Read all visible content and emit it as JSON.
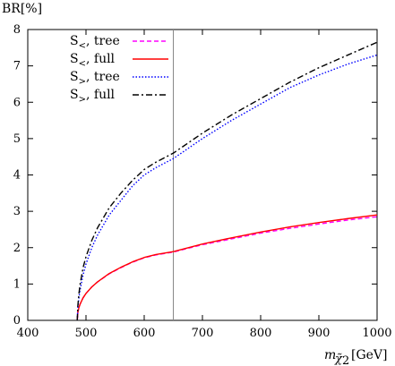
{
  "chart_data": {
    "type": "line",
    "xlabel_main": "m",
    "xlabel_subscript": "χ̃",
    "xlabel_subsubscript": "2",
    "xlabel_unit": "[GeV]",
    "ylabel": "BR[%]",
    "xlim": [
      400,
      1000
    ],
    "ylim": [
      0,
      8
    ],
    "x_ticks": [
      400,
      500,
      600,
      700,
      800,
      900,
      1000
    ],
    "y_ticks": [
      0,
      1,
      2,
      3,
      4,
      5,
      6,
      7,
      8
    ],
    "vertical_line_x": 650,
    "legend_position": "top-left",
    "series": [
      {
        "name_main": "S",
        "name_sub": "<",
        "name_rest": ", tree",
        "color": "#ff00ff",
        "style": "dashed",
        "x": [
          485,
          486,
          488,
          490,
          495,
          500,
          510,
          520,
          540,
          560,
          580,
          600,
          620,
          650,
          700,
          750,
          800,
          850,
          900,
          950,
          1000
        ],
        "y": [
          0.0,
          0.22,
          0.36,
          0.45,
          0.62,
          0.74,
          0.92,
          1.06,
          1.28,
          1.45,
          1.6,
          1.72,
          1.8,
          1.88,
          2.08,
          2.24,
          2.4,
          2.53,
          2.65,
          2.76,
          2.85
        ]
      },
      {
        "name_main": "S",
        "name_sub": "<",
        "name_rest": ", full",
        "color": "#ff0000",
        "style": "solid",
        "x": [
          485,
          486,
          488,
          490,
          495,
          500,
          510,
          520,
          540,
          560,
          580,
          600,
          620,
          650,
          700,
          750,
          800,
          850,
          900,
          950,
          1000
        ],
        "y": [
          0.0,
          0.22,
          0.36,
          0.45,
          0.62,
          0.74,
          0.92,
          1.06,
          1.29,
          1.46,
          1.61,
          1.73,
          1.81,
          1.89,
          2.1,
          2.27,
          2.43,
          2.57,
          2.69,
          2.8,
          2.9
        ]
      },
      {
        "name_main": "S",
        "name_sub": ">",
        "name_rest": ", tree",
        "color": "#0000ff",
        "style": "dotted",
        "x": [
          485,
          486,
          488,
          490,
          495,
          500,
          510,
          520,
          540,
          560,
          580,
          600,
          620,
          650,
          700,
          750,
          800,
          850,
          900,
          950,
          1000
        ],
        "y": [
          0.0,
          0.35,
          0.65,
          0.85,
          1.25,
          1.55,
          2.0,
          2.35,
          2.9,
          3.3,
          3.7,
          4.0,
          4.2,
          4.45,
          5.0,
          5.5,
          5.95,
          6.4,
          6.75,
          7.05,
          7.3
        ]
      },
      {
        "name_main": "S",
        "name_sub": ">",
        "name_rest": ", full",
        "color": "#000000",
        "style": "dashdot",
        "x": [
          485,
          486,
          488,
          490,
          495,
          500,
          510,
          520,
          540,
          560,
          580,
          600,
          620,
          650,
          700,
          750,
          800,
          850,
          900,
          950,
          1000
        ],
        "y": [
          0.0,
          0.4,
          0.75,
          1.0,
          1.45,
          1.75,
          2.2,
          2.55,
          3.1,
          3.5,
          3.85,
          4.15,
          4.35,
          4.6,
          5.15,
          5.65,
          6.1,
          6.55,
          6.95,
          7.3,
          7.65
        ]
      }
    ]
  }
}
